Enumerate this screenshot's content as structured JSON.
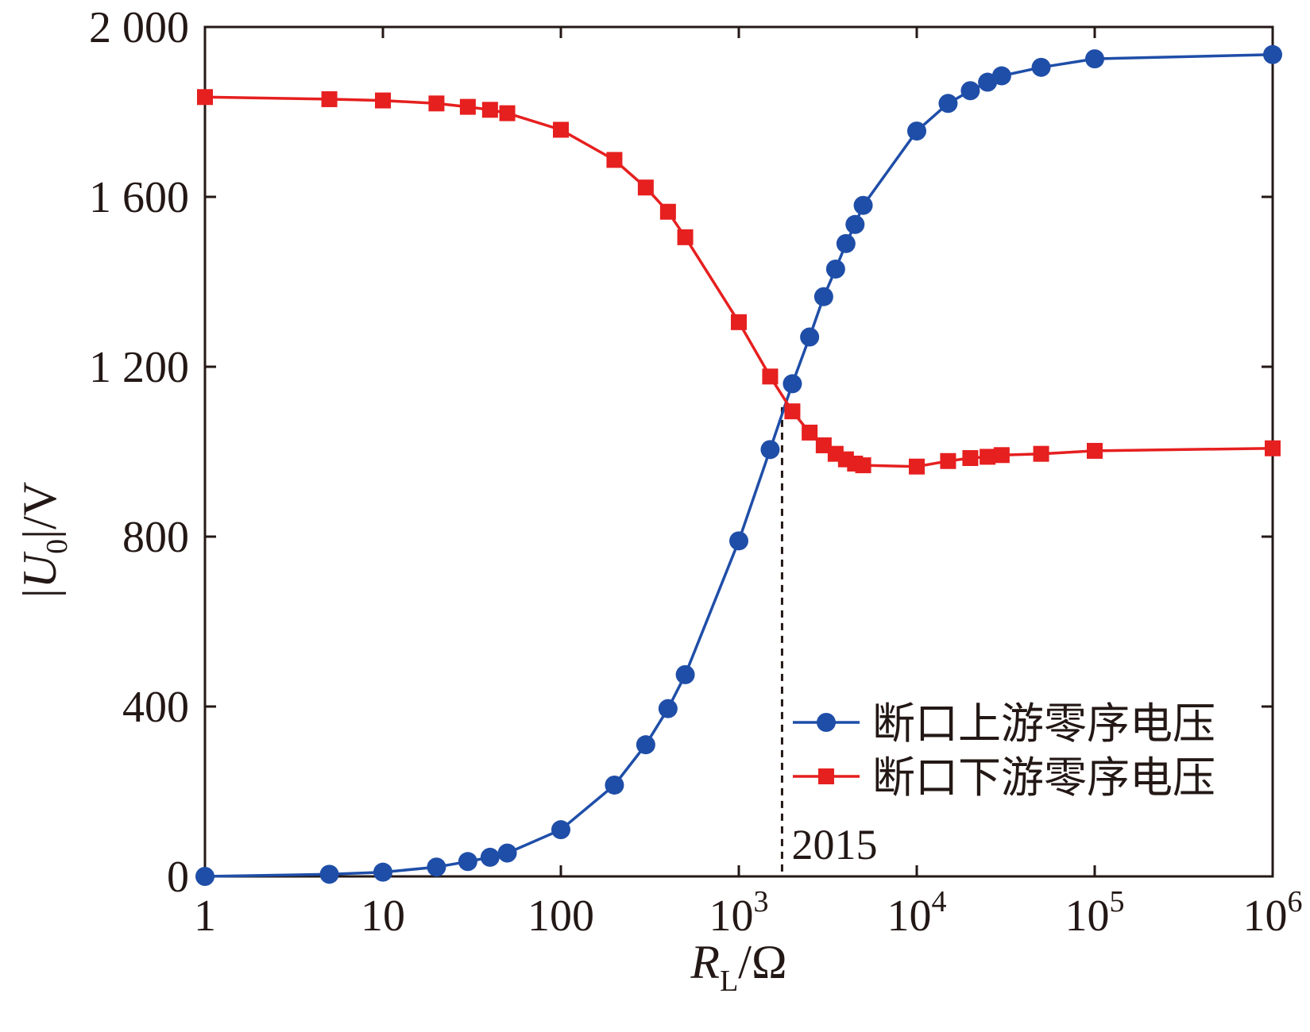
{
  "chart_data": {
    "type": "line",
    "title": "",
    "xscale": "log",
    "xlim": [
      1,
      1000000
    ],
    "ylim": [
      0,
      2000
    ],
    "xlabel": {
      "main": "R",
      "sub": "L",
      "unit": "/Ω"
    },
    "ylabel": {
      "pre": "|",
      "main": "U",
      "sub": "0",
      "post": "|/V"
    },
    "x_ticks": [
      {
        "value": 1,
        "base": "1",
        "exp": ""
      },
      {
        "value": 10,
        "base": "10",
        "exp": ""
      },
      {
        "value": 100,
        "base": "100",
        "exp": ""
      },
      {
        "value": 1000,
        "base": "10",
        "exp": "3"
      },
      {
        "value": 10000,
        "base": "10",
        "exp": "4"
      },
      {
        "value": 100000,
        "base": "10",
        "exp": "5"
      },
      {
        "value": 1000000,
        "base": "10",
        "exp": "6"
      }
    ],
    "y_ticks": [
      {
        "value": 0,
        "label": "0"
      },
      {
        "value": 400,
        "label": "400"
      },
      {
        "value": 800,
        "label": "800"
      },
      {
        "value": 1200,
        "label": "1 200"
      },
      {
        "value": 1600,
        "label": "1 600"
      },
      {
        "value": 2000,
        "label": "2 000"
      }
    ],
    "series": [
      {
        "name": "断口上游零序电压",
        "color": "#1f4ea8",
        "marker": "circle",
        "x": [
          1,
          5,
          10,
          20,
          30,
          40,
          50,
          100,
          200,
          300,
          400,
          500,
          1000,
          1500,
          2000,
          2500,
          3000,
          3500,
          4000,
          4500,
          5000,
          10000,
          15000,
          20000,
          25000,
          30000,
          50000,
          100000,
          1000000
        ],
        "y": [
          0,
          5,
          10,
          22,
          35,
          45,
          55,
          110,
          215,
          310,
          395,
          475,
          790,
          1005,
          1160,
          1270,
          1365,
          1430,
          1490,
          1535,
          1580,
          1755,
          1820,
          1850,
          1870,
          1885,
          1905,
          1925,
          1935
        ]
      },
      {
        "name": "断口下游零序电压",
        "color": "#e61f1f",
        "marker": "square",
        "x": [
          1,
          5,
          10,
          20,
          30,
          40,
          50,
          100,
          200,
          300,
          400,
          500,
          1000,
          1500,
          2000,
          2500,
          3000,
          3500,
          4000,
          4500,
          5000,
          10000,
          15000,
          20000,
          25000,
          30000,
          50000,
          100000,
          1000000
        ],
        "y": [
          1835,
          1830,
          1827,
          1820,
          1812,
          1805,
          1797,
          1758,
          1687,
          1622,
          1565,
          1505,
          1305,
          1177,
          1095,
          1045,
          1015,
          995,
          982,
          972,
          968,
          965,
          978,
          985,
          988,
          992,
          995,
          1002,
          1008
        ]
      }
    ],
    "legend": "center-right",
    "annotation": {
      "text": "2015",
      "x": 1750,
      "line": "dashed-vertical"
    }
  }
}
